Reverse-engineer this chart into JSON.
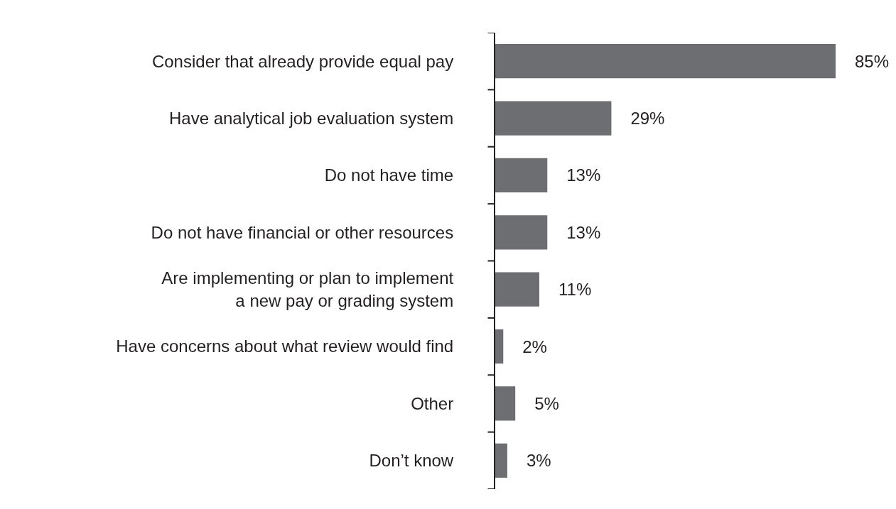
{
  "chart_data": {
    "type": "bar",
    "orientation": "horizontal",
    "categories": [
      "Consider that already provide equal pay",
      "Have analytical job evaluation system",
      "Do not have time",
      "Do not have financial or other resources",
      "Are implementing or plan to implement\na new pay or grading system",
      "Have concerns about what review would find",
      "Other",
      "Don’t know"
    ],
    "values": [
      85,
      29,
      13,
      13,
      11,
      2,
      5,
      3
    ],
    "value_labels": [
      "85%",
      "29%",
      "13%",
      "13%",
      "11%",
      "2%",
      "5%",
      "3%"
    ],
    "color": "#6d6e71",
    "xlim": [
      0,
      85
    ],
    "tick_labels": "y"
  }
}
